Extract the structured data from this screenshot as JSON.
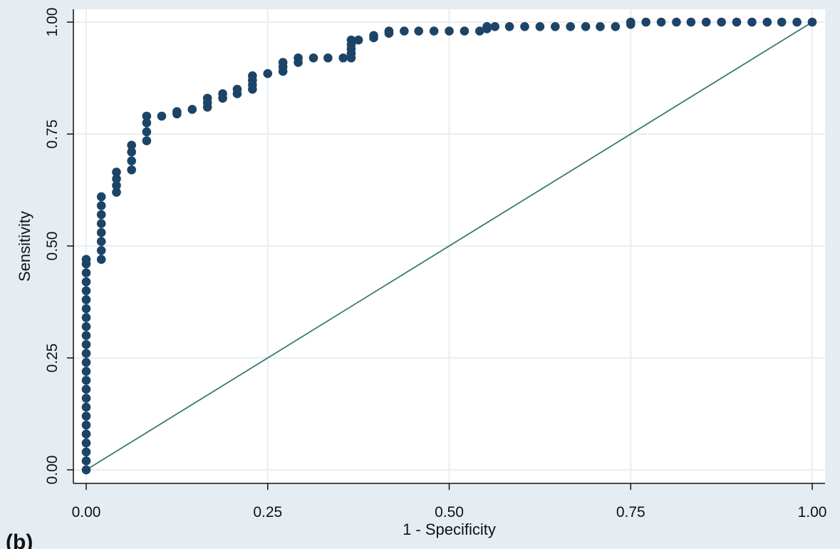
{
  "panel_label": "(b)",
  "chart_data": {
    "type": "scatter",
    "title": "",
    "xlabel": "1 - Specificity",
    "ylabel": "Sensitivity",
    "xlim": [
      0,
      1
    ],
    "ylim": [
      0,
      1
    ],
    "xticks": [
      "0.00",
      "0.25",
      "0.50",
      "0.75",
      "1.00"
    ],
    "yticks": [
      "0.00",
      "0.25",
      "0.50",
      "0.75",
      "1.00"
    ],
    "grid": true,
    "legend": "none",
    "colors": {
      "background": "#e6edf2",
      "plot_area": "#ffffff",
      "markers": "#1c4466",
      "reference_line": "#3a7a6c",
      "grid": "#e8eef3"
    },
    "reference_line": {
      "x": [
        0,
        1
      ],
      "y": [
        0,
        1
      ]
    },
    "series": [
      {
        "x": [
          0,
          0,
          0,
          0,
          0,
          0,
          0,
          0,
          0,
          0,
          0,
          0,
          0,
          0,
          0,
          0,
          0,
          0,
          0,
          0,
          0,
          0,
          0,
          0,
          0,
          0.0208,
          0.0208,
          0.0208,
          0.0208,
          0.0208,
          0.0208,
          0.0208,
          0.0208,
          0.0417,
          0.0417,
          0.0417,
          0.0417,
          0.0625,
          0.0625,
          0.0625,
          0.0625,
          0.0833,
          0.0833,
          0.0833,
          0.0833,
          0.104,
          0.125,
          0.125,
          0.146,
          0.167,
          0.167,
          0.167,
          0.188,
          0.188,
          0.208,
          0.208,
          0.229,
          0.229,
          0.229,
          0.229,
          0.25,
          0.271,
          0.271,
          0.271,
          0.292,
          0.292,
          0.313,
          0.333,
          0.354,
          0.365,
          0.365,
          0.365,
          0.365,
          0.365,
          0.375,
          0.396,
          0.396,
          0.417,
          0.417,
          0.438,
          0.458,
          0.479,
          0.5,
          0.521,
          0.542,
          0.552,
          0.552,
          0.563,
          0.583,
          0.604,
          0.625,
          0.646,
          0.667,
          0.688,
          0.708,
          0.729,
          0.75,
          0.75,
          0.771,
          0.792,
          0.813,
          0.833,
          0.854,
          0.875,
          0.896,
          0.917,
          0.938,
          0.958,
          0.979,
          1.0
        ],
        "y": [
          0,
          0.02,
          0.04,
          0.06,
          0.08,
          0.1,
          0.12,
          0.14,
          0.16,
          0.18,
          0.2,
          0.22,
          0.24,
          0.26,
          0.28,
          0.3,
          0.32,
          0.34,
          0.36,
          0.38,
          0.4,
          0.42,
          0.44,
          0.46,
          0.47,
          0.47,
          0.49,
          0.51,
          0.53,
          0.55,
          0.57,
          0.59,
          0.61,
          0.62,
          0.635,
          0.65,
          0.665,
          0.67,
          0.69,
          0.71,
          0.725,
          0.735,
          0.755,
          0.775,
          0.79,
          0.79,
          0.795,
          0.8,
          0.805,
          0.81,
          0.82,
          0.83,
          0.83,
          0.84,
          0.84,
          0.85,
          0.85,
          0.86,
          0.87,
          0.88,
          0.885,
          0.89,
          0.9,
          0.91,
          0.91,
          0.92,
          0.92,
          0.92,
          0.92,
          0.92,
          0.93,
          0.94,
          0.95,
          0.96,
          0.96,
          0.965,
          0.97,
          0.975,
          0.98,
          0.98,
          0.98,
          0.98,
          0.98,
          0.98,
          0.98,
          0.985,
          0.99,
          0.99,
          0.99,
          0.99,
          0.99,
          0.99,
          0.99,
          0.99,
          0.99,
          0.99,
          0.995,
          1.0,
          1.0,
          1.0,
          1.0,
          1.0,
          1.0,
          1.0,
          1.0,
          1.0,
          1.0,
          1.0,
          1.0,
          1.0
        ]
      }
    ]
  }
}
